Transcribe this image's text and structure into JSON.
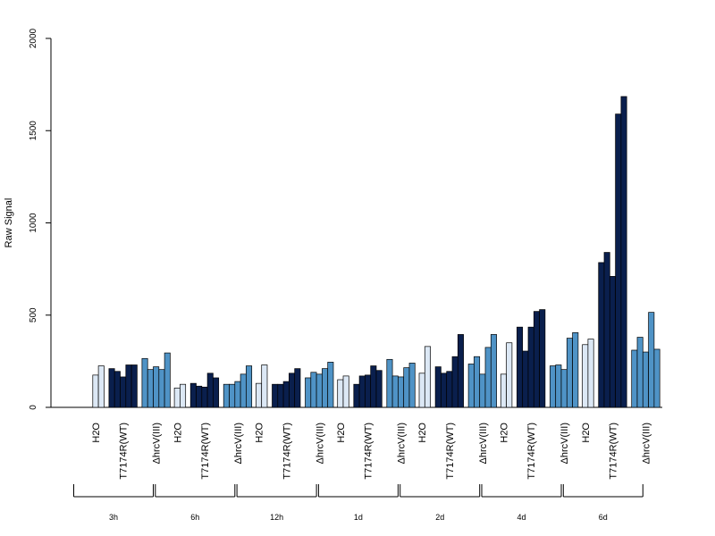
{
  "chart_data": {
    "type": "bar",
    "ylabel": "Raw Signal",
    "ylim": [
      0,
      2000
    ],
    "yticks": [
      0,
      500,
      1000,
      1500,
      2000
    ],
    "grid": false,
    "legend": "none",
    "conditions": [
      "H2O",
      "T7174R(WT)",
      "ΔhrcV(III)"
    ],
    "colors": {
      "H2O": "#dce8f5",
      "T7174R(WT)": "#0a1f4d",
      "ΔhrcV(III)": "#4f93c6"
    },
    "groups": [
      {
        "name": "3h",
        "H2O": [
          0,
          175,
          225
        ],
        "T7174R(WT)": [
          210,
          195,
          165,
          230,
          230
        ],
        "ΔhrcV(III)": [
          265,
          205,
          220,
          205,
          295
        ]
      },
      {
        "name": "6h",
        "H2O": [
          0,
          105,
          125
        ],
        "T7174R(WT)": [
          130,
          115,
          110,
          185,
          160
        ],
        "ΔhrcV(III)": [
          125,
          125,
          140,
          180,
          225
        ]
      },
      {
        "name": "12h",
        "H2O": [
          0,
          130,
          230
        ],
        "T7174R(WT)": [
          125,
          125,
          140,
          185,
          210
        ],
        "ΔhrcV(III)": [
          160,
          190,
          180,
          210,
          245
        ]
      },
      {
        "name": "1d",
        "H2O": [
          0,
          150,
          170
        ],
        "T7174R(WT)": [
          125,
          170,
          175,
          225,
          200
        ],
        "ΔhrcV(III)": [
          260,
          170,
          165,
          215,
          240
        ]
      },
      {
        "name": "2d",
        "H2O": [
          0,
          185,
          330
        ],
        "T7174R(WT)": [
          220,
          185,
          195,
          275,
          395
        ],
        "ΔhrcV(III)": [
          235,
          275,
          180,
          325,
          395
        ]
      },
      {
        "name": "4d",
        "H2O": [
          0,
          180,
          350
        ],
        "T7174R(WT)": [
          435,
          305,
          435,
          520,
          530
        ],
        "ΔhrcV(III)": [
          225,
          230,
          205,
          375,
          405
        ]
      },
      {
        "name": "6d",
        "H2O": [
          0,
          340,
          370
        ],
        "T7174R(WT)": [
          785,
          840,
          710,
          1590,
          1685
        ],
        "ΔhrcV(III)": [
          310,
          380,
          300,
          515,
          315
        ]
      }
    ]
  }
}
